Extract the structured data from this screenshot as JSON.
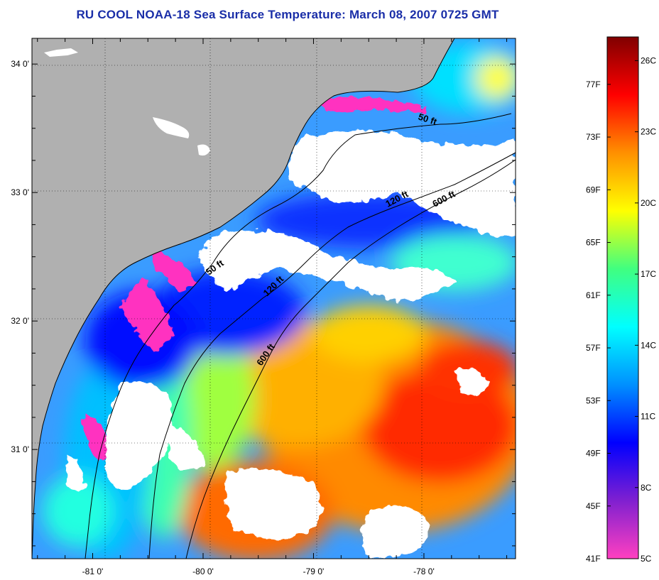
{
  "title": "RU COOL  NOAA-18  Sea Surface Temperature:  March 08, 2007 0725 GMT",
  "map": {
    "lon_range": [
      -81.55,
      -77.17
    ],
    "lat_range": [
      30.15,
      34.2
    ],
    "lon_ticks": [
      {
        "value": -81,
        "label": "-81 0'"
      },
      {
        "value": -80,
        "label": "-80 0'"
      },
      {
        "value": -79,
        "label": "-79 0'"
      },
      {
        "value": -78,
        "label": "-78 0'"
      }
    ],
    "lat_ticks": [
      {
        "value": 34,
        "label": "34 0'"
      },
      {
        "value": 33,
        "label": "33 0'"
      },
      {
        "value": 32,
        "label": "32 0'"
      },
      {
        "value": 31,
        "label": "31 0'"
      }
    ],
    "land_color": "#b0b0b0",
    "cloud_color": "#ffffff",
    "contours": [
      {
        "label": "50 ft"
      },
      {
        "label": "120 ft"
      },
      {
        "label": "600 ft"
      }
    ],
    "contour_labels": [
      {
        "text": "50 ft"
      },
      {
        "text": "120 ft"
      },
      {
        "text": "600 ft"
      },
      {
        "text": "50 ft"
      },
      {
        "text": "120 ft"
      },
      {
        "text": "600 ft"
      }
    ]
  },
  "colorbar": {
    "range_c": [
      5,
      27
    ],
    "fahrenheit_labels": [
      "77F",
      "73F",
      "69F",
      "65F",
      "61F",
      "57F",
      "53F",
      "49F",
      "45F",
      "41F"
    ],
    "celsius_labels": [
      "26C",
      "23C",
      "20C",
      "17C",
      "14C",
      "11C",
      "8C",
      "5C"
    ],
    "colors": [
      "#ff40c0",
      "#8020d0",
      "#0000ff",
      "#0090ff",
      "#00ffff",
      "#40ff80",
      "#ffff00",
      "#ff9000",
      "#ff0000",
      "#800000"
    ]
  }
}
